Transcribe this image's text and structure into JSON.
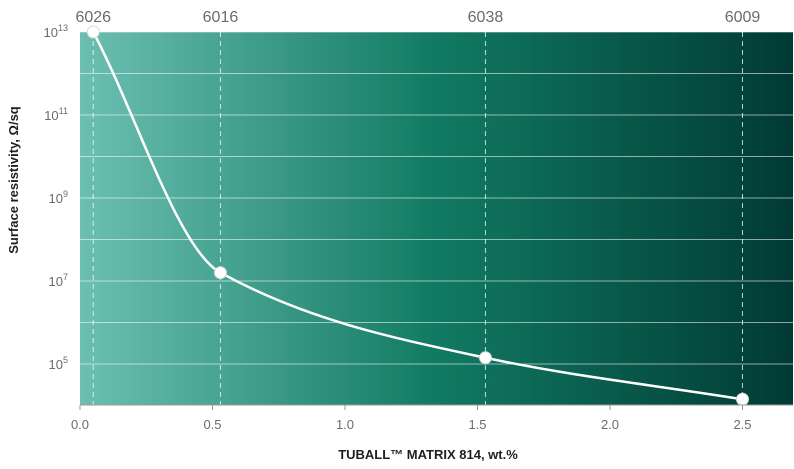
{
  "chart_data": {
    "type": "line",
    "xlabel": "TUBALL™ MATRIX 814, wt.%",
    "ylabel": "Surface resistivity, Ω/sq",
    "xlim": [
      0.0,
      2.7
    ],
    "ylim_log10": [
      4,
      13
    ],
    "y_scale": "log",
    "grid": "horizontal",
    "x_ticks": [
      "0.0",
      "0.5",
      "1.0",
      "1.5",
      "2.0",
      "2.5"
    ],
    "x_tick_values": [
      0.0,
      0.5,
      1.0,
      1.5,
      2.0,
      2.5
    ],
    "y_ticks": [
      {
        "base": "10",
        "exp": "13",
        "value": 13
      },
      {
        "base": "10",
        "exp": "11",
        "value": 11
      },
      {
        "base": "10",
        "exp": "9",
        "value": 9
      },
      {
        "base": "10",
        "exp": "7",
        "value": 7
      },
      {
        "base": "10",
        "exp": "5",
        "value": 5
      }
    ],
    "points": [
      {
        "label": "6026",
        "x": 0.05,
        "y_log10": 13.0
      },
      {
        "label": "6016",
        "x": 0.53,
        "y_log10": 7.2
      },
      {
        "label": "6038",
        "x": 1.53,
        "y_log10": 5.15
      },
      {
        "label": "6009",
        "x": 2.5,
        "y_log10": 4.15
      }
    ],
    "colors": {
      "gradient_start": "#6cbfb2",
      "gradient_mid": "#117a63",
      "gradient_end": "#003a34",
      "line": "#ffffff",
      "grid": "#ffffff",
      "axis_text": "#6b6b6b"
    }
  }
}
